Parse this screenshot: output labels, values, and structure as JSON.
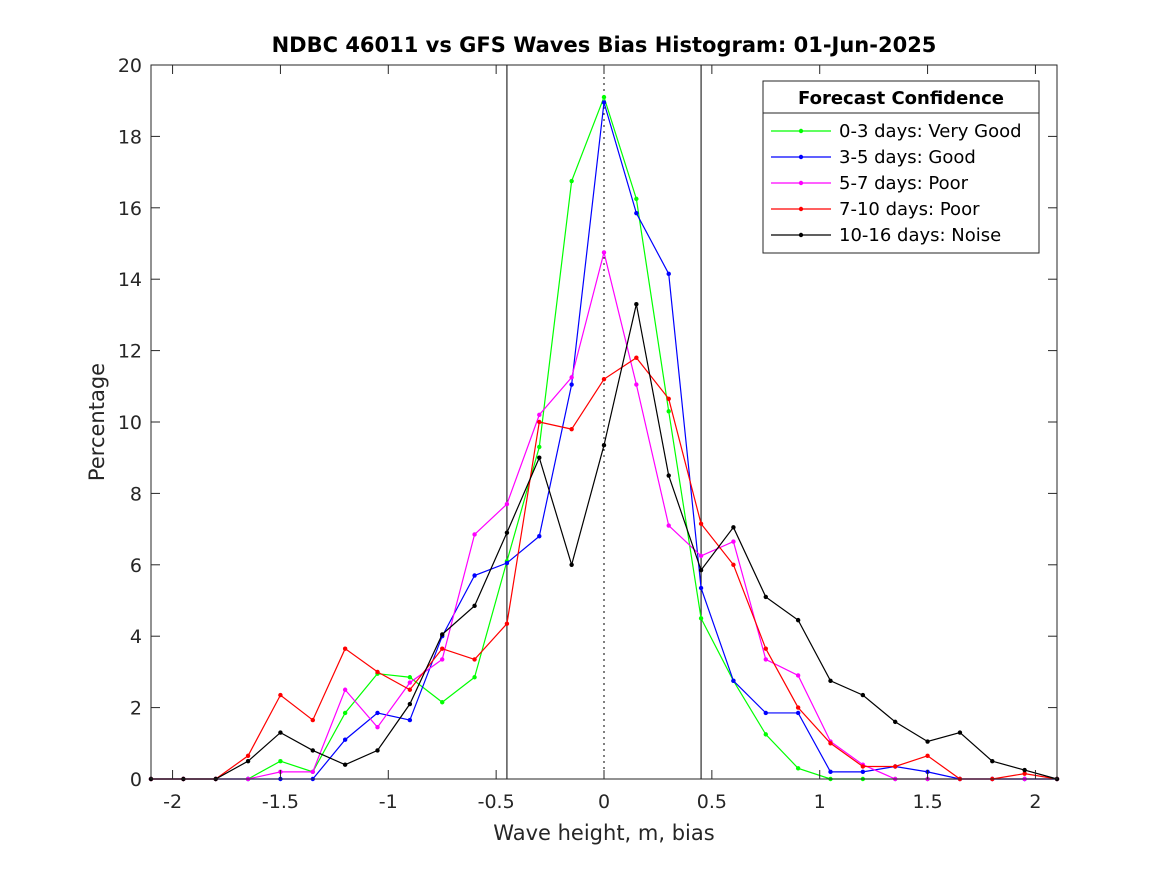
{
  "chart_data": {
    "type": "line",
    "title": "NDBC 46011 vs GFS Waves Bias Histogram: 01-Jun-2025",
    "xlabel": "Wave height, m, bias",
    "ylabel": "Percentage",
    "xlim": [
      -2.1,
      2.1
    ],
    "ylim": [
      0,
      20
    ],
    "xticks": [
      -2,
      -1.5,
      -1,
      -0.5,
      0,
      0.5,
      1,
      1.5,
      2
    ],
    "xtick_labels": [
      "-2",
      "-1.5",
      "-1",
      "-0.5",
      "0",
      "0.5",
      "1",
      "1.5",
      "2"
    ],
    "yticks": [
      0,
      2,
      4,
      6,
      8,
      10,
      12,
      14,
      16,
      18,
      20
    ],
    "ytick_labels": [
      "0",
      "2",
      "4",
      "6",
      "8",
      "10",
      "12",
      "14",
      "16",
      "18",
      "20"
    ],
    "grid": false,
    "reference_lines": [
      {
        "x": -0.45,
        "style": "solid",
        "color": "#000000"
      },
      {
        "x": 0,
        "style": "dotted",
        "color": "#000000"
      },
      {
        "x": 0.45,
        "style": "solid",
        "color": "#000000"
      }
    ],
    "legend": {
      "title": "Forecast Confidence",
      "position": "top-right"
    },
    "x": [
      -2.1,
      -1.95,
      -1.8,
      -1.65,
      -1.5,
      -1.35,
      -1.2,
      -1.05,
      -0.9,
      -0.75,
      -0.6,
      -0.45,
      -0.3,
      -0.15,
      0,
      0.15,
      0.3,
      0.45,
      0.6,
      0.75,
      0.9,
      1.05,
      1.2,
      1.35,
      1.5,
      1.65,
      1.8,
      1.95,
      2.1
    ],
    "series": [
      {
        "name": "0-3 days: Very Good",
        "color": "#00ff00",
        "values": [
          0,
          0,
          0,
          0,
          0.5,
          0.2,
          1.85,
          2.95,
          2.85,
          2.15,
          2.85,
          6.1,
          9.3,
          16.75,
          19.1,
          16.25,
          10.3,
          4.5,
          2.75,
          1.25,
          0.3,
          0,
          0,
          0,
          0,
          0,
          0,
          0,
          0
        ]
      },
      {
        "name": "3-5 days: Good",
        "color": "#0000ff",
        "values": [
          0,
          0,
          0,
          0,
          0,
          0,
          1.1,
          1.85,
          1.65,
          4.0,
          5.7,
          6.05,
          6.8,
          11.05,
          18.95,
          15.85,
          14.15,
          5.35,
          2.75,
          1.85,
          1.85,
          0.2,
          0.2,
          0.35,
          0.2,
          0,
          0,
          0,
          0
        ]
      },
      {
        "name": "5-7 days: Poor",
        "color": "#ff00ff",
        "values": [
          0,
          0,
          0,
          0,
          0.2,
          0.2,
          2.5,
          1.45,
          2.7,
          3.35,
          6.85,
          7.7,
          10.2,
          11.25,
          14.75,
          11.05,
          7.1,
          6.25,
          6.65,
          3.35,
          2.9,
          1.05,
          0.4,
          0,
          0,
          0,
          0,
          0,
          0
        ]
      },
      {
        "name": "7-10 days: Poor",
        "color": "#ff0000",
        "values": [
          0,
          0,
          0,
          0.65,
          2.35,
          1.65,
          3.65,
          3.0,
          2.5,
          3.65,
          3.35,
          4.35,
          10.0,
          9.8,
          11.2,
          11.8,
          10.65,
          7.15,
          6.0,
          3.65,
          2.0,
          1.0,
          0.35,
          0.35,
          0.65,
          0,
          0,
          0.15,
          0
        ]
      },
      {
        "name": "10-16 days: Noise",
        "color": "#000000",
        "values": [
          0,
          0,
          0,
          0.5,
          1.3,
          0.8,
          0.4,
          0.8,
          2.1,
          4.05,
          4.85,
          6.9,
          9.0,
          6.0,
          9.35,
          13.3,
          8.5,
          5.85,
          7.05,
          5.1,
          4.45,
          2.75,
          2.35,
          1.6,
          1.05,
          1.3,
          0.5,
          0.25,
          0
        ]
      }
    ]
  }
}
